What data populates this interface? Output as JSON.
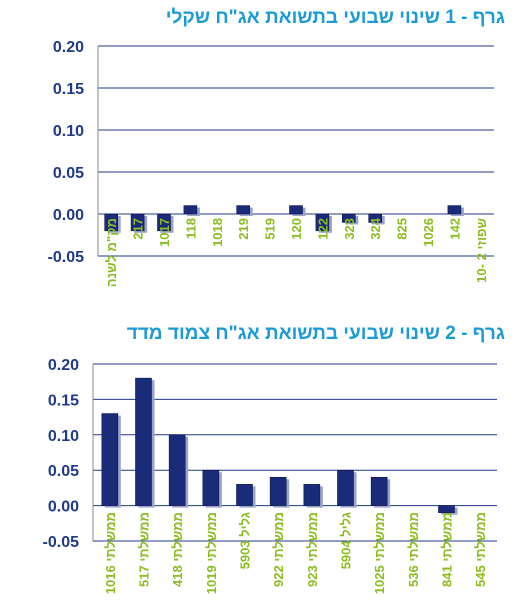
{
  "chart_data": [
    {
      "type": "bar",
      "title": "גרף - 1  שינוי שבועי בתשואת אג\"ח שקלי",
      "categories": [
        "מק\"מ לשנה",
        "217",
        "1017",
        "118",
        "1018",
        "219",
        "519",
        "120",
        "122",
        "323",
        "324",
        "825",
        "1026",
        "142",
        "שפוזי 2 -10"
      ],
      "values": [
        -0.02,
        -0.02,
        -0.02,
        0.01,
        0.0,
        0.01,
        0.0,
        0.01,
        -0.02,
        -0.01,
        -0.01,
        0.0,
        0.0,
        0.01,
        0.0
      ],
      "yticks": [
        "0.20",
        "0.15",
        "0.10",
        "0.05",
        "0.00",
        "-0.05"
      ],
      "ylim": [
        -0.05,
        0.2
      ],
      "grid": true,
      "colors": {
        "bar": "#1a2b7a",
        "grid": "#1f3a8a",
        "ytick": "#1f3a8a",
        "xtick": "#8bbd1e"
      }
    },
    {
      "type": "bar",
      "title": "גרף - 2  שינוי שבועי בתשואת אג\"ח צמוד מדד",
      "categories": [
        "ממשלתי 1016",
        "ממשלתי 517",
        "ממשלתי 418",
        "ממשלתי 1019",
        "גליל 5903",
        "ממשלתי 922",
        "ממשלתי 923",
        "גליל 5904",
        "ממשלתי 1025",
        "ממשלתי 536",
        "ממשלתי 841",
        "ממשלתי 545"
      ],
      "values": [
        0.13,
        0.18,
        0.1,
        0.05,
        0.03,
        0.04,
        0.03,
        0.05,
        0.04,
        0.0,
        -0.01,
        0.0
      ],
      "yticks": [
        "0.20",
        "0.15",
        "0.10",
        "0.05",
        "0.00",
        "-0.05"
      ],
      "ylim": [
        -0.05,
        0.2
      ],
      "grid": true,
      "colors": {
        "bar": "#1a2b7a",
        "grid": "#1f3a8a",
        "ytick": "#1f3a8a",
        "xtick": "#8bbd1e"
      }
    }
  ]
}
